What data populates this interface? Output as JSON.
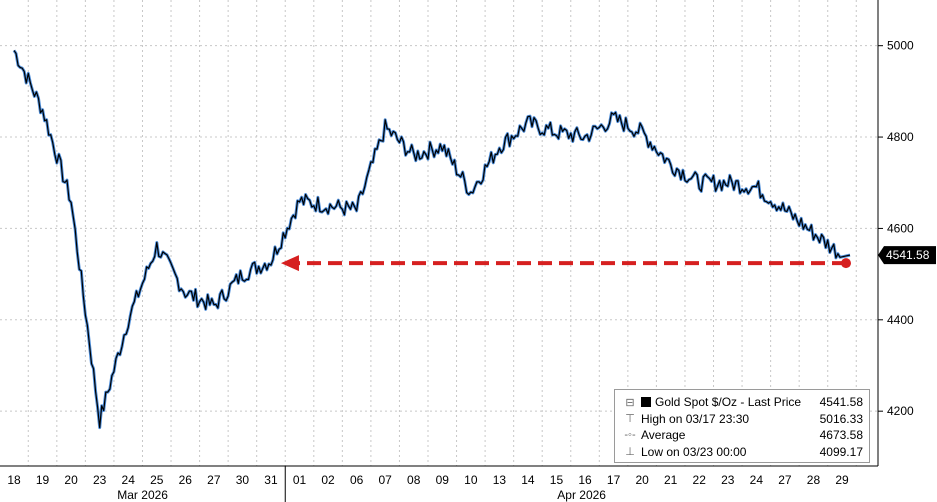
{
  "chart_data": {
    "type": "line",
    "series": [
      {
        "name": "Gold Spot $/Oz - Last Price",
        "x": [
          "03/18",
          "03/19",
          "03/20",
          "03/23",
          "03/24",
          "03/25",
          "03/26",
          "03/27",
          "03/30",
          "03/31",
          "04/01",
          "04/02",
          "04/06",
          "04/07",
          "04/08",
          "04/09",
          "04/10",
          "04/13",
          "04/14",
          "04/15",
          "04/16",
          "04/17",
          "04/20",
          "04/21",
          "04/22",
          "04/23",
          "04/24",
          "04/27",
          "04/28",
          "04/29"
        ],
        "y": [
          4990,
          4860,
          4660,
          4180,
          4400,
          4560,
          4460,
          4430,
          4500,
          4530,
          4660,
          4650,
          4640,
          4820,
          4760,
          4780,
          4680,
          4780,
          4830,
          4810,
          4800,
          4840,
          4810,
          4740,
          4700,
          4700,
          4690,
          4640,
          4590,
          4541.58
        ]
      }
    ],
    "ylim": [
      4080,
      5100
    ],
    "y_ticks": [
      "5000",
      "4800",
      "4600",
      "4400",
      "4200"
    ],
    "y_tick_values": [
      5000,
      4800,
      4600,
      4400,
      4200
    ],
    "x_tick_labels": [
      "18",
      "19",
      "20",
      "23",
      "24",
      "25",
      "26",
      "27",
      "30",
      "31",
      "01",
      "02",
      "06",
      "07",
      "08",
      "09",
      "10",
      "13",
      "14",
      "15",
      "16",
      "17",
      "20",
      "21",
      "22",
      "23",
      "24",
      "27",
      "28",
      "29"
    ],
    "month_labels": [
      "Mar 2026",
      "Apr 2026"
    ],
    "last_price_label": "4541.58",
    "grid": true,
    "legend_position": "bottom-right",
    "colors": {
      "line": "#000000",
      "line_glow": "#3b82d6",
      "arrow": "#d62020",
      "label_bg": "#000000"
    }
  },
  "legend": {
    "title": "Gold Spot $/Oz - Last Price",
    "title_value": "4541.58",
    "rows": [
      {
        "icon": "high-icon",
        "label": "High on 03/17 23:30",
        "value": "5016.33"
      },
      {
        "icon": "average-icon",
        "label": "Average",
        "value": "4673.58"
      },
      {
        "icon": "low-icon",
        "label": "Low on 03/23 00:00",
        "value": "4099.17"
      }
    ]
  }
}
